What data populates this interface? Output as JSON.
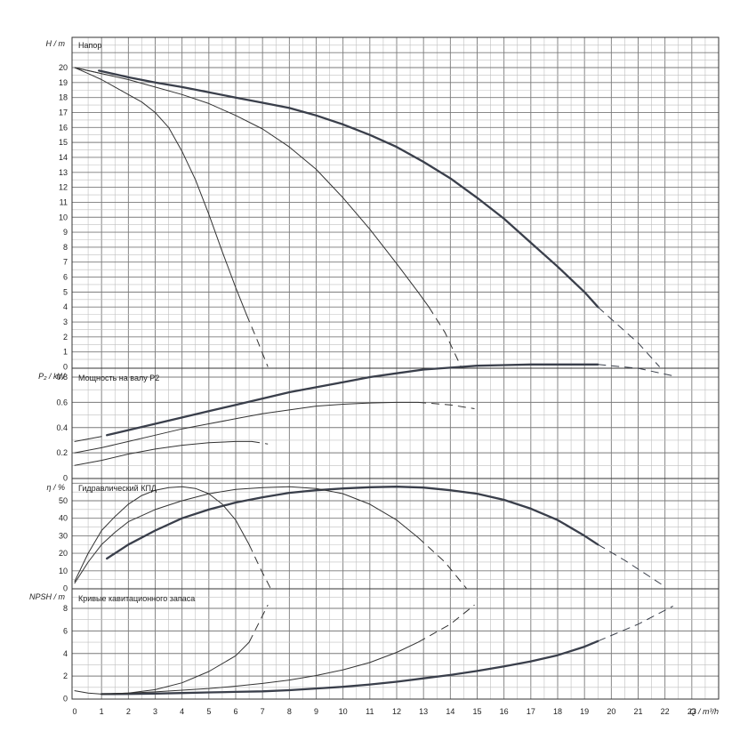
{
  "chart_data": [
    {
      "type": "line",
      "title": "Напор",
      "ylabel": "H / m",
      "xlabel": "Q / m³/h",
      "xlim": [
        0,
        24
      ],
      "ylim": [
        0,
        22
      ],
      "yticks": [
        0,
        1,
        2,
        3,
        4,
        5,
        6,
        7,
        8,
        9,
        10,
        11,
        12,
        13,
        14,
        15,
        16,
        17,
        18,
        19,
        20
      ],
      "grid": true,
      "series": [
        {
          "style": "thick",
          "solid": [
            [
              0.9,
              19.8
            ],
            [
              2,
              19.35
            ],
            [
              3,
              19.0
            ],
            [
              4,
              18.7
            ],
            [
              5,
              18.35
            ],
            [
              6,
              18.0
            ],
            [
              7,
              17.65
            ],
            [
              8,
              17.3
            ],
            [
              9,
              16.8
            ],
            [
              10,
              16.2
            ],
            [
              11,
              15.5
            ],
            [
              12,
              14.7
            ],
            [
              13,
              13.7
            ],
            [
              14,
              12.6
            ],
            [
              15,
              11.3
            ],
            [
              16,
              9.9
            ],
            [
              17,
              8.3
            ],
            [
              18,
              6.7
            ],
            [
              19,
              5.0
            ],
            [
              19.5,
              4.0
            ]
          ],
          "dashed": [
            [
              19.5,
              4.0
            ],
            [
              20,
              3.2
            ],
            [
              21,
              1.6
            ],
            [
              21.8,
              0
            ]
          ]
        },
        {
          "style": "thin",
          "solid": [
            [
              0,
              20
            ],
            [
              1,
              19.6
            ],
            [
              2,
              19.2
            ],
            [
              3,
              18.7
            ],
            [
              4,
              18.2
            ],
            [
              5,
              17.6
            ],
            [
              6,
              16.8
            ],
            [
              7,
              15.9
            ],
            [
              8,
              14.7
            ],
            [
              9,
              13.2
            ],
            [
              10,
              11.3
            ],
            [
              11,
              9.2
            ],
            [
              12,
              6.9
            ],
            [
              12.8,
              5.0
            ],
            [
              13.2,
              4.0
            ]
          ],
          "dashed": [
            [
              13.2,
              4.0
            ],
            [
              13.8,
              2.3
            ],
            [
              14.4,
              0
            ]
          ]
        },
        {
          "style": "thin",
          "solid": [
            [
              0,
              20
            ],
            [
              0.5,
              19.6
            ],
            [
              1,
              19.2
            ],
            [
              1.5,
              18.7
            ],
            [
              2,
              18.2
            ],
            [
              2.5,
              17.7
            ],
            [
              3,
              17.0
            ],
            [
              3.5,
              16.0
            ],
            [
              4,
              14.4
            ],
            [
              4.5,
              12.5
            ],
            [
              5,
              10.2
            ],
            [
              5.5,
              7.7
            ],
            [
              6,
              5.3
            ],
            [
              6.4,
              3.5
            ]
          ],
          "dashed": [
            [
              6.4,
              3.5
            ],
            [
              6.8,
              1.8
            ],
            [
              7.2,
              0
            ]
          ]
        },
        {
          "style": "thin",
          "solid": [
            [
              0,
              20
            ],
            [
              0.5,
              19.8
            ],
            [
              1,
              19.6
            ]
          ],
          "dashed": []
        }
      ]
    },
    {
      "type": "line",
      "title": "Мощность на валу P2",
      "ylabel": "P₂ / kW",
      "xlim": [
        0,
        24
      ],
      "ylim": [
        0,
        0.9
      ],
      "yticks": [
        0,
        0.2,
        0.4,
        0.6,
        0.8
      ],
      "grid": true,
      "series": [
        {
          "style": "thick",
          "solid": [
            [
              1.2,
              0.34
            ],
            [
              2,
              0.38
            ],
            [
              3,
              0.43
            ],
            [
              4,
              0.48
            ],
            [
              5,
              0.53
            ],
            [
              6,
              0.58
            ],
            [
              7,
              0.63
            ],
            [
              8,
              0.68
            ],
            [
              9,
              0.72
            ],
            [
              10,
              0.76
            ],
            [
              11,
              0.8
            ],
            [
              12,
              0.83
            ],
            [
              13,
              0.86
            ],
            [
              14,
              0.875
            ],
            [
              15,
              0.89
            ],
            [
              16,
              0.895
            ],
            [
              17,
              0.9
            ],
            [
              18,
              0.9
            ],
            [
              19,
              0.9
            ],
            [
              19.5,
              0.9
            ]
          ],
          "dashed": [
            [
              19.5,
              0.9
            ],
            [
              21,
              0.87
            ],
            [
              22.3,
              0.81
            ]
          ]
        },
        {
          "style": "thin",
          "solid": [
            [
              0,
              0.29
            ],
            [
              1,
              0.33
            ]
          ],
          "dashed": []
        },
        {
          "style": "thin",
          "solid": [
            [
              0,
              0.2
            ],
            [
              1,
              0.24
            ],
            [
              2,
              0.29
            ],
            [
              3,
              0.34
            ],
            [
              4,
              0.39
            ],
            [
              5,
              0.43
            ],
            [
              6,
              0.47
            ],
            [
              7,
              0.51
            ],
            [
              8,
              0.54
            ],
            [
              9,
              0.57
            ],
            [
              10,
              0.585
            ],
            [
              11,
              0.595
            ],
            [
              12,
              0.6
            ],
            [
              12.8,
              0.6
            ]
          ],
          "dashed": [
            [
              12.8,
              0.6
            ],
            [
              14,
              0.58
            ],
            [
              14.9,
              0.55
            ]
          ]
        },
        {
          "style": "thin",
          "solid": [
            [
              0,
              0.1
            ],
            [
              1,
              0.14
            ],
            [
              2,
              0.19
            ],
            [
              3,
              0.23
            ],
            [
              4,
              0.26
            ],
            [
              5,
              0.28
            ],
            [
              6,
              0.29
            ],
            [
              6.6,
              0.29
            ]
          ],
          "dashed": [
            [
              6.6,
              0.29
            ],
            [
              7.2,
              0.27
            ]
          ]
        }
      ]
    },
    {
      "type": "line",
      "title": "Гидравлический КПД",
      "ylabel": "η / %",
      "xlim": [
        0,
        24
      ],
      "ylim": [
        0,
        60
      ],
      "yticks": [
        0,
        10,
        20,
        30,
        40,
        50
      ],
      "grid": true,
      "series": [
        {
          "style": "thick",
          "solid": [
            [
              1.2,
              17
            ],
            [
              2,
              25
            ],
            [
              3,
              33
            ],
            [
              4,
              40
            ],
            [
              5,
              45
            ],
            [
              6,
              49
            ],
            [
              7,
              52
            ],
            [
              8,
              54.5
            ],
            [
              9,
              56
            ],
            [
              10,
              57
            ],
            [
              11,
              57.7
            ],
            [
              12,
              58
            ],
            [
              13,
              57.5
            ],
            [
              14,
              56
            ],
            [
              15,
              54
            ],
            [
              16,
              50.5
            ],
            [
              17,
              45.5
            ],
            [
              18,
              39
            ],
            [
              19,
              30
            ],
            [
              19.5,
              25
            ]
          ],
          "dashed": [
            [
              19.5,
              25
            ],
            [
              20.5,
              16
            ],
            [
              21.5,
              6
            ],
            [
              21.9,
              2
            ]
          ]
        },
        {
          "style": "thin",
          "solid": [
            [
              0,
              3
            ],
            [
              0.5,
              15
            ],
            [
              1,
              25
            ],
            [
              1.5,
              32
            ],
            [
              2,
              38
            ],
            [
              3,
              45
            ],
            [
              4,
              50
            ],
            [
              5,
              54
            ],
            [
              6,
              56.5
            ],
            [
              7,
              57.5
            ],
            [
              8,
              58
            ],
            [
              9,
              57
            ],
            [
              10,
              54
            ],
            [
              11,
              48
            ],
            [
              12,
              39
            ],
            [
              12.8,
              29
            ]
          ],
          "dashed": [
            [
              12.8,
              29
            ],
            [
              13.8,
              15
            ],
            [
              14.6,
              0
            ]
          ]
        },
        {
          "style": "thin",
          "solid": [
            [
              0,
              4
            ],
            [
              0.5,
              20
            ],
            [
              1,
              33
            ],
            [
              1.5,
              41
            ],
            [
              2,
              48
            ],
            [
              2.5,
              53
            ],
            [
              3,
              56
            ],
            [
              3.5,
              57.5
            ],
            [
              4,
              58
            ],
            [
              4.5,
              57
            ],
            [
              5,
              54
            ],
            [
              5.5,
              48
            ],
            [
              6,
              39
            ],
            [
              6.5,
              25
            ]
          ],
          "dashed": [
            [
              6.5,
              25
            ],
            [
              6.9,
              12
            ],
            [
              7.3,
              0
            ]
          ]
        }
      ]
    },
    {
      "type": "line",
      "title": "Кривые кавитационного запаса",
      "ylabel": "NPSH / m",
      "xlabel": "Q / m³/h",
      "xlim": [
        0,
        24
      ],
      "ylim": [
        0,
        9
      ],
      "yticks": [
        0,
        2,
        4,
        6,
        8
      ],
      "xticks": [
        0,
        1,
        2,
        3,
        4,
        5,
        6,
        7,
        8,
        9,
        10,
        11,
        12,
        13,
        14,
        15,
        16,
        17,
        18,
        19,
        20,
        21,
        22,
        23
      ],
      "grid": true,
      "series": [
        {
          "style": "thick",
          "solid": [
            [
              1,
              0.4
            ],
            [
              2,
              0.42
            ],
            [
              3,
              0.45
            ],
            [
              4,
              0.5
            ],
            [
              5,
              0.55
            ],
            [
              6,
              0.6
            ],
            [
              7,
              0.65
            ],
            [
              8,
              0.75
            ],
            [
              9,
              0.9
            ],
            [
              10,
              1.05
            ],
            [
              11,
              1.25
            ],
            [
              12,
              1.5
            ],
            [
              13,
              1.8
            ],
            [
              14,
              2.1
            ],
            [
              15,
              2.45
            ],
            [
              16,
              2.85
            ],
            [
              17,
              3.3
            ],
            [
              18,
              3.85
            ],
            [
              19,
              4.6
            ],
            [
              19.5,
              5.1
            ]
          ],
          "dashed": [
            [
              19.5,
              5.1
            ],
            [
              21,
              6.6
            ],
            [
              22.3,
              8.2
            ]
          ]
        },
        {
          "style": "thin",
          "solid": [
            [
              0,
              0.7
            ],
            [
              0.5,
              0.5
            ],
            [
              1,
              0.4
            ]
          ],
          "dashed": []
        },
        {
          "style": "thin",
          "solid": [
            [
              1,
              0.4
            ],
            [
              2,
              0.5
            ],
            [
              3,
              0.6
            ],
            [
              4,
              0.75
            ],
            [
              5,
              0.9
            ],
            [
              6,
              1.1
            ],
            [
              7,
              1.35
            ],
            [
              8,
              1.65
            ],
            [
              9,
              2.05
            ],
            [
              10,
              2.55
            ],
            [
              11,
              3.2
            ],
            [
              12,
              4.1
            ],
            [
              12.8,
              5.0
            ]
          ],
          "dashed": [
            [
              12.8,
              5.0
            ],
            [
              14,
              6.6
            ],
            [
              14.9,
              8.3
            ]
          ]
        },
        {
          "style": "thin",
          "solid": [
            [
              1,
              0.4
            ],
            [
              2,
              0.5
            ],
            [
              3,
              0.8
            ],
            [
              4,
              1.4
            ],
            [
              5,
              2.4
            ],
            [
              6,
              3.8
            ],
            [
              6.5,
              5.0
            ]
          ],
          "dashed": [
            [
              6.5,
              5.0
            ],
            [
              7.2,
              8.3
            ]
          ]
        }
      ]
    }
  ]
}
